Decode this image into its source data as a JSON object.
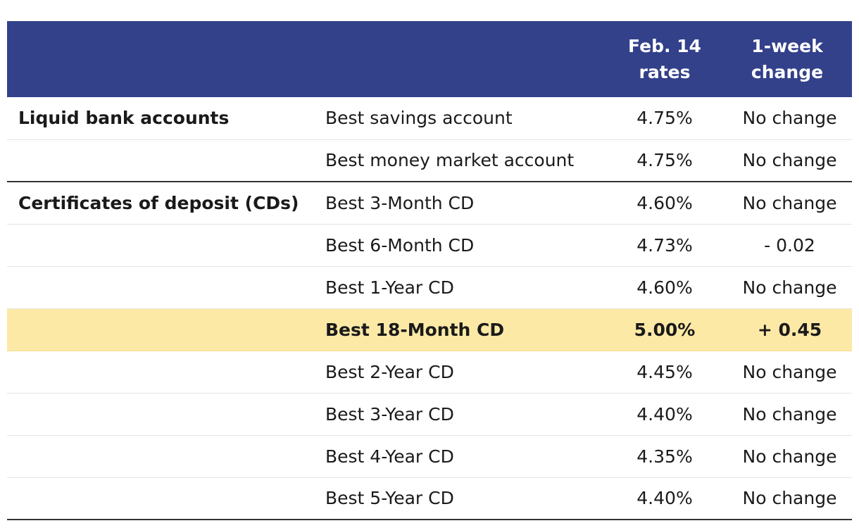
{
  "header": {
    "col1": "",
    "col2": "",
    "col3": "Feb. 14\nrates",
    "col4": "1-week\nchange"
  },
  "colors": {
    "header_bg": "#33408a",
    "highlight_bg": "#fde9a6"
  },
  "rows": [
    {
      "group": "Liquid bank accounts",
      "product": "Best savings account",
      "rate": "4.75%",
      "change": "No change"
    },
    {
      "group": "",
      "product": "Best money market account",
      "rate": "4.75%",
      "change": "No change"
    },
    {
      "group": "Certificates of deposit (CDs)",
      "product": "Best 3-Month CD",
      "rate": "4.60%",
      "change": "No change"
    },
    {
      "group": "",
      "product": "Best 6-Month CD",
      "rate": "4.73%",
      "change": "- 0.02"
    },
    {
      "group": "",
      "product": "Best 1-Year CD",
      "rate": "4.60%",
      "change": "No change"
    },
    {
      "group": "",
      "product": "Best 18-Month CD",
      "rate": "5.00%",
      "change": "+ 0.45",
      "highlighted": true
    },
    {
      "group": "",
      "product": "Best 2-Year CD",
      "rate": "4.45%",
      "change": "No change"
    },
    {
      "group": "",
      "product": "Best 3-Year CD",
      "rate": "4.40%",
      "change": "No change"
    },
    {
      "group": "",
      "product": "Best 4-Year CD",
      "rate": "4.35%",
      "change": "No change"
    },
    {
      "group": "",
      "product": "Best 5-Year CD",
      "rate": "4.40%",
      "change": "No change"
    }
  ]
}
